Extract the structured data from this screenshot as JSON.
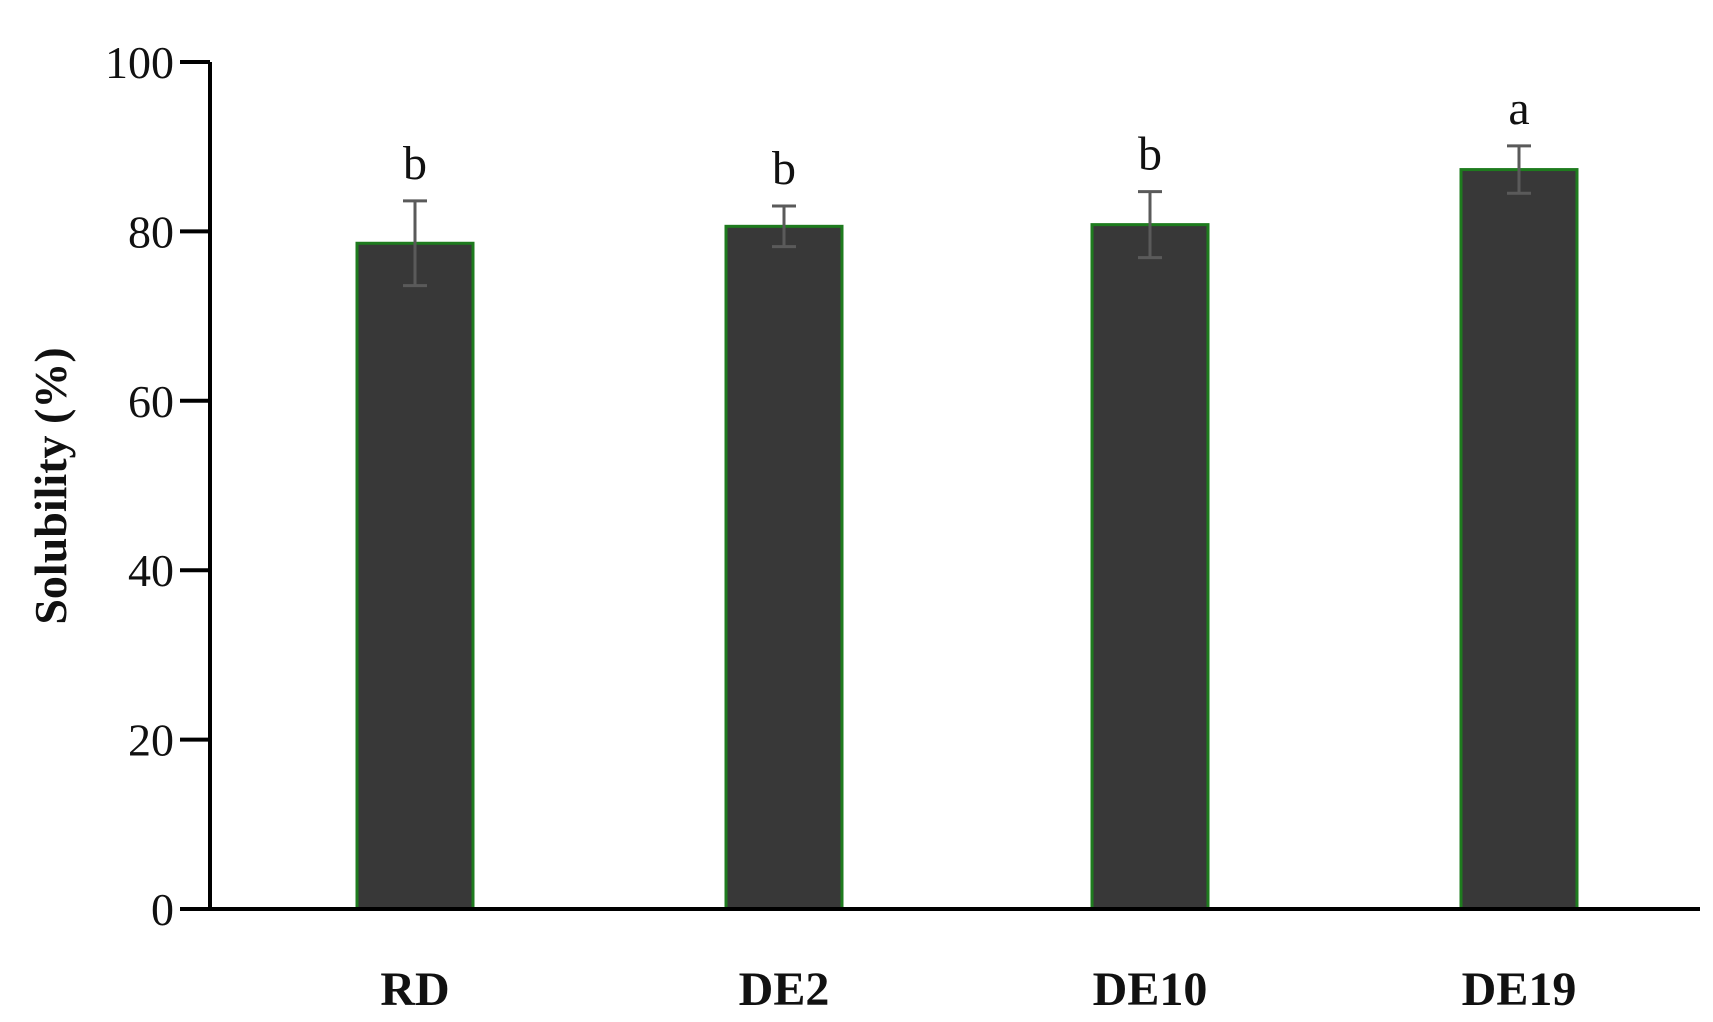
{
  "chart_data": {
    "type": "bar",
    "title": "",
    "xlabel": "",
    "ylabel": "Solubility (%)",
    "ylim": [
      0,
      100
    ],
    "yticks": [
      0,
      20,
      40,
      60,
      80,
      100
    ],
    "categories": [
      "RD",
      "DE2",
      "DE10",
      "DE19"
    ],
    "series": [
      {
        "values": [
          78.6,
          80.6,
          80.8,
          87.3
        ],
        "errors": [
          5.0,
          2.4,
          3.9,
          2.8
        ],
        "labels": [
          "b",
          "b",
          "b",
          "a"
        ]
      }
    ],
    "grid": false,
    "legend": "none",
    "colors": {
      "bar_fill": "#383838",
      "bar_edge": "#1e7b1e",
      "error_bar": "#5a5a5a",
      "axis": "#000000"
    }
  }
}
